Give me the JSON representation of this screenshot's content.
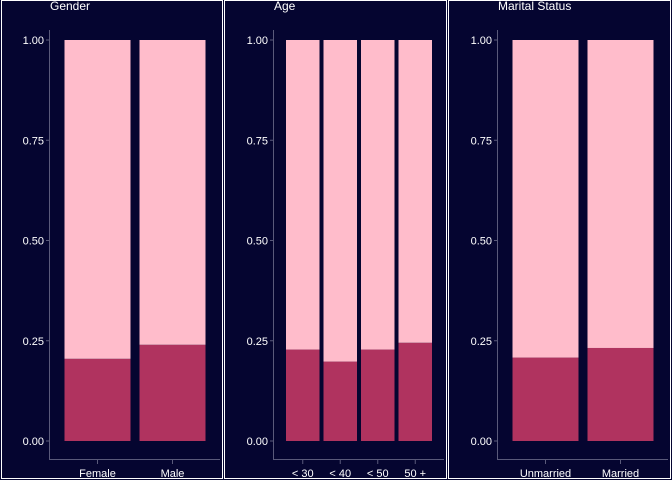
{
  "colors": {
    "background": "#050530",
    "panel_border": "#ffffff",
    "upper_fill": "#ffbccb",
    "lower_fill": "#b0335f",
    "axis": "#5a5a7a",
    "text": "#ffffff"
  },
  "chart_data": [
    {
      "type": "bar",
      "stacked": true,
      "title": "Gender",
      "categories": [
        "Female",
        "Male"
      ],
      "series": [
        {
          "values": [
            0.205,
            0.24
          ]
        },
        {
          "values": [
            0.795,
            0.76
          ]
        }
      ],
      "ylim": [
        0,
        1
      ],
      "yticks": [
        "0.00",
        "0.25",
        "0.50",
        "0.75",
        "1.00"
      ],
      "grid": false
    },
    {
      "type": "bar",
      "stacked": true,
      "title": "Age",
      "categories": [
        "< 30",
        "< 40",
        "< 50",
        "50 +"
      ],
      "series": [
        {
          "values": [
            0.228,
            0.198,
            0.228,
            0.245
          ]
        },
        {
          "values": [
            0.772,
            0.802,
            0.772,
            0.755
          ]
        }
      ],
      "ylim": [
        0,
        1
      ],
      "yticks": [
        "0.00",
        "0.25",
        "0.50",
        "0.75",
        "1.00"
      ],
      "grid": false
    },
    {
      "type": "bar",
      "stacked": true,
      "title": "Marital Status",
      "categories": [
        "Unmarried",
        "Married"
      ],
      "series": [
        {
          "values": [
            0.208,
            0.232
          ]
        },
        {
          "values": [
            0.792,
            0.768
          ]
        }
      ],
      "ylim": [
        0,
        1
      ],
      "yticks": [
        "0.00",
        "0.25",
        "0.50",
        "0.75",
        "1.00"
      ],
      "grid": false
    }
  ]
}
